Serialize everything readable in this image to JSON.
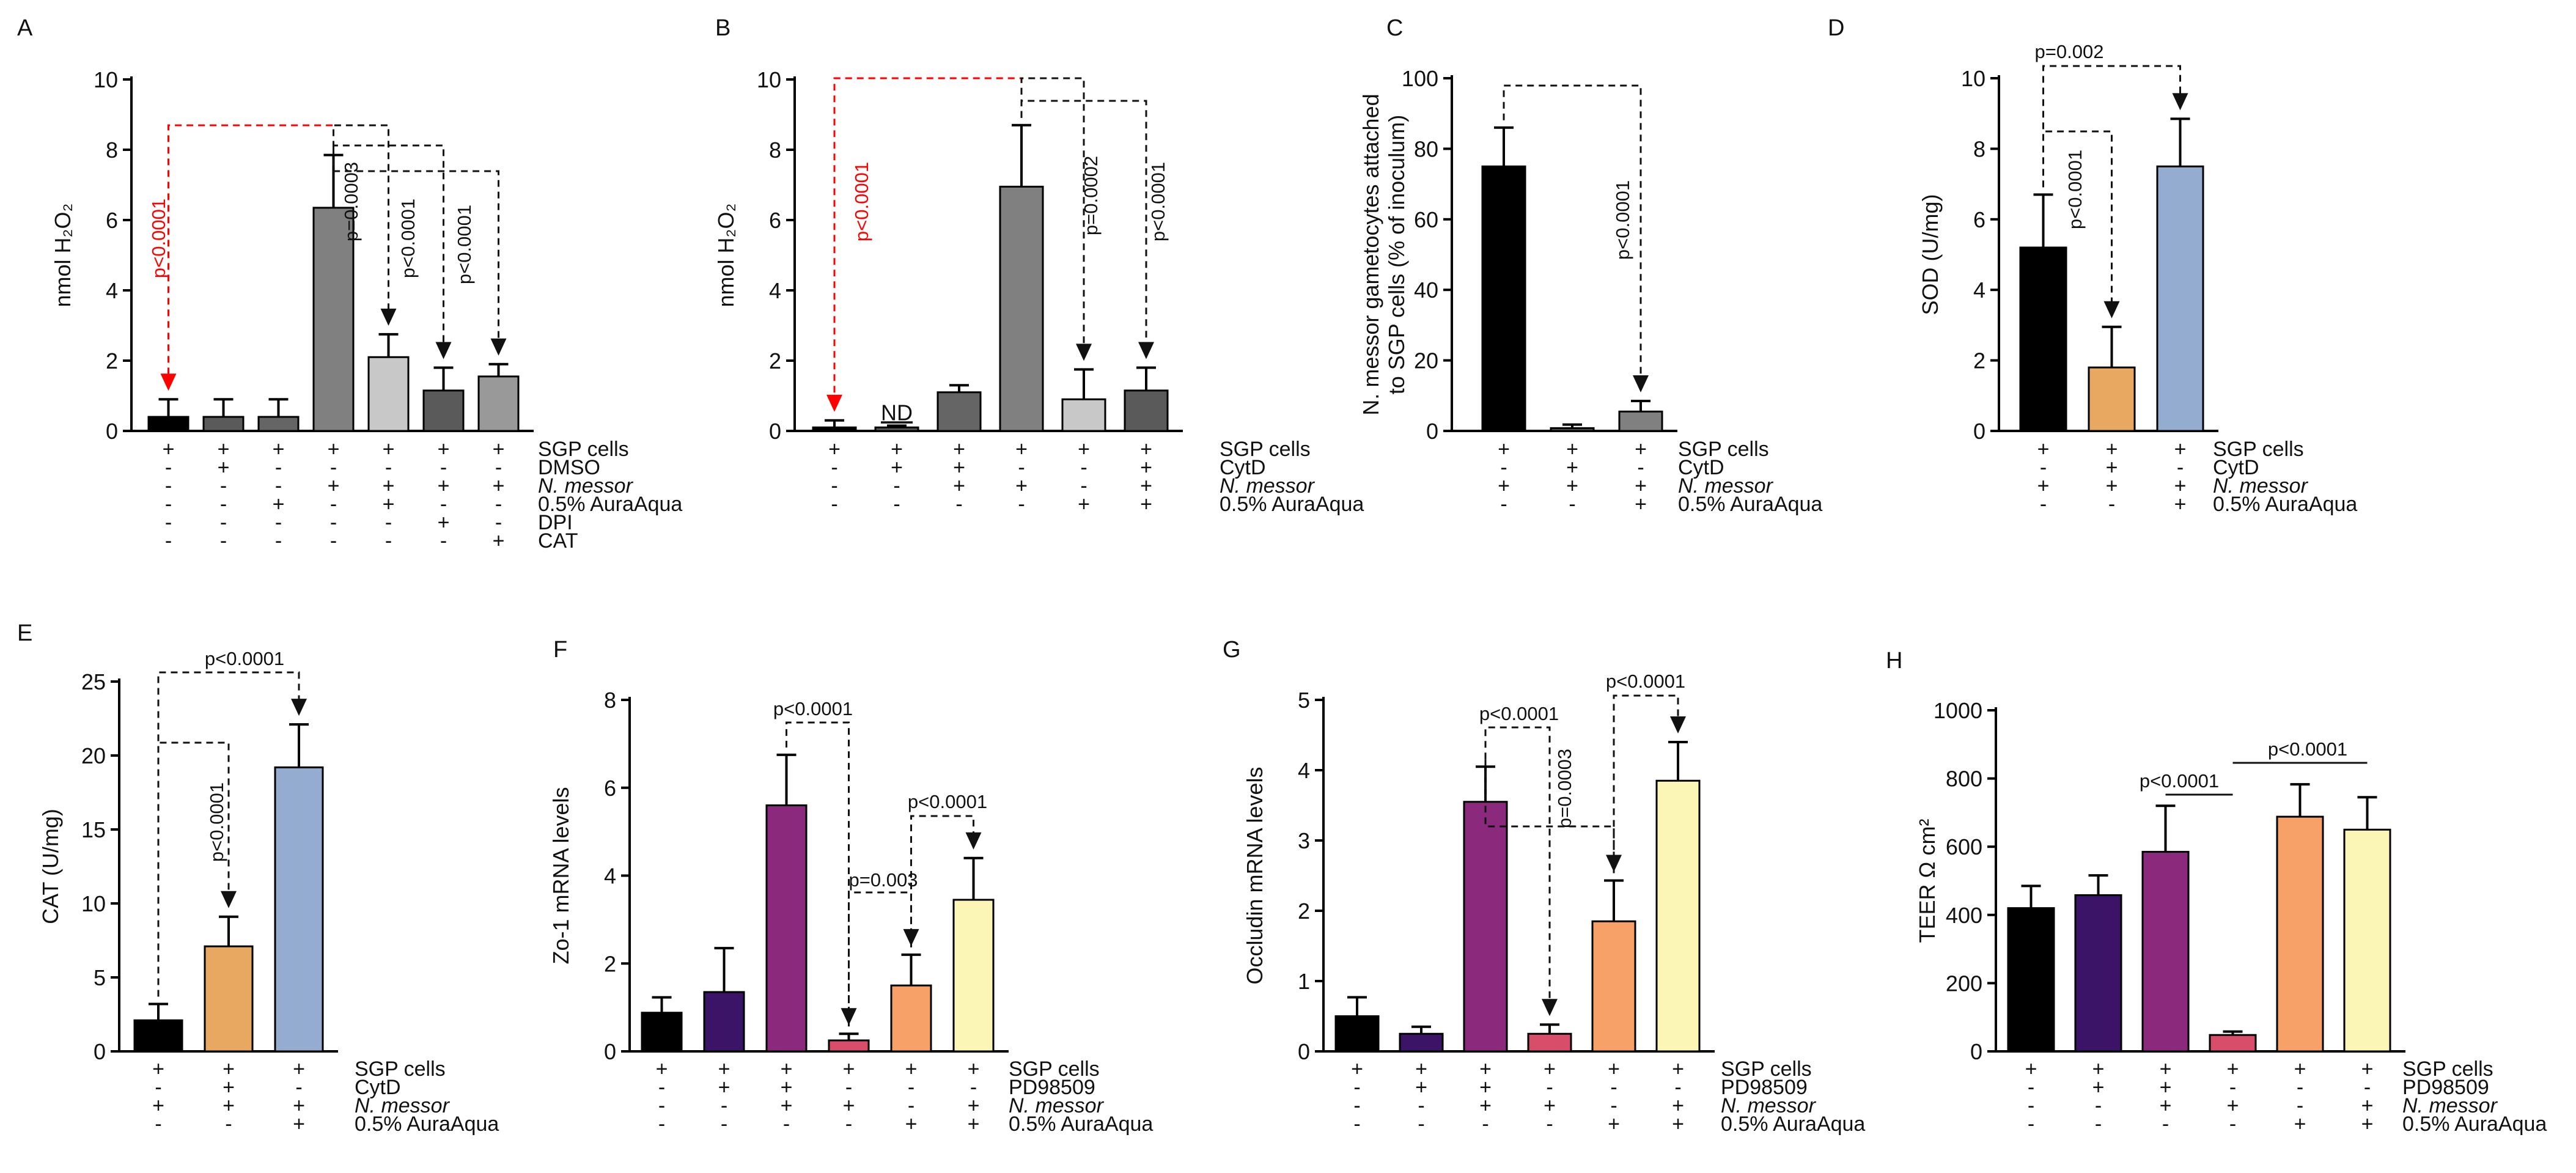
{
  "figure": {
    "colors": {
      "black": "#000000",
      "dark_gray": "#5a5a5a",
      "mid_gray": "#808080",
      "light_gray": "#c8c8c8",
      "gray2": "#656565",
      "gray3": "#999999",
      "orange_tan": "#e8a862",
      "steel_blue": "#93acd0",
      "indigo": "#3b1468",
      "purple": "#8b2a7d",
      "rose": "#d84d6a",
      "salmon": "#f7a068",
      "cream": "#fcf6b6",
      "red": "#ff0000"
    }
  },
  "chart_data": [
    {
      "panel": "A",
      "type": "bar",
      "ylabel": "nmol H₂O₂",
      "ylim": [
        0,
        10
      ],
      "yticks": [
        "0",
        "2",
        "4",
        "6",
        "8",
        "10"
      ],
      "values": [
        0.4,
        0.4,
        0.4,
        6.35,
        2.1,
        1.15,
        1.55
      ],
      "errors": [
        0.5,
        0.5,
        0.5,
        1.5,
        0.65,
        0.65,
        0.35
      ],
      "bar_colors": [
        "#000000",
        "#5a5a5a",
        "#656565",
        "#808080",
        "#c8c8c8",
        "#5a5a5a",
        "#999999"
      ],
      "conditions": [
        {
          "label": "SGP cells",
          "marks": [
            "+",
            "+",
            "+",
            "+",
            "+",
            "+",
            "+"
          ]
        },
        {
          "label": "DMSO",
          "marks": [
            "-",
            "+",
            "-",
            "-",
            "-",
            "-",
            "-"
          ]
        },
        {
          "label": "N. messor",
          "italic": true,
          "marks": [
            "-",
            "-",
            "-",
            "+",
            "+",
            "+",
            "+"
          ]
        },
        {
          "label": "0.5% AuraAqua",
          "marks": [
            "-",
            "-",
            "+",
            "-",
            "+",
            "-",
            "-"
          ]
        },
        {
          "label": "DPI",
          "marks": [
            "-",
            "-",
            "-",
            "-",
            "-",
            "+",
            "-"
          ]
        },
        {
          "label": "CAT",
          "marks": [
            "-",
            "-",
            "-",
            "-",
            "-",
            "-",
            "+"
          ]
        }
      ],
      "annotations": [
        {
          "text": "p<0.0001",
          "from": 3,
          "to": 0,
          "color": "red"
        },
        {
          "text": "p=0.0003",
          "from": 3,
          "to": 4
        },
        {
          "text": "p<0.0001",
          "from": 3,
          "to": 5
        },
        {
          "text": "p<0.0001",
          "from": 3,
          "to": 6
        }
      ],
      "nd": []
    },
    {
      "panel": "B",
      "type": "bar",
      "ylabel": "nmol H₂O₂",
      "ylim": [
        0,
        10
      ],
      "yticks": [
        "0",
        "2",
        "4",
        "6",
        "8",
        "10"
      ],
      "values": [
        0.1,
        0.1,
        1.1,
        6.95,
        0.9,
        1.15
      ],
      "errors": [
        0.2,
        0.05,
        0.2,
        1.75,
        0.85,
        0.65
      ],
      "bar_colors": [
        "#000000",
        "#5a5a5a",
        "#656565",
        "#808080",
        "#c8c8c8",
        "#5a5a5a"
      ],
      "conditions": [
        {
          "label": "SGP cells",
          "marks": [
            "+",
            "+",
            "+",
            "+",
            "+",
            "+"
          ]
        },
        {
          "label": "CytD",
          "marks": [
            "-",
            "+",
            "+",
            "-",
            "-",
            "+"
          ]
        },
        {
          "label": "N. messor",
          "italic": true,
          "marks": [
            "-",
            "-",
            "+",
            "+",
            "-",
            "+"
          ]
        },
        {
          "label": "0.5% AuraAqua",
          "marks": [
            "-",
            "-",
            "-",
            "-",
            "+",
            "+"
          ]
        }
      ],
      "annotations": [
        {
          "text": "p<0.0001",
          "from": 3,
          "to": 0,
          "color": "red"
        },
        {
          "text": "p=0.0002",
          "from": 3,
          "to": 4
        },
        {
          "text": "p<0.0001",
          "from": 3,
          "to": 5
        }
      ],
      "nd": [
        {
          "text": "ND",
          "bar": 1
        }
      ]
    },
    {
      "panel": "C",
      "type": "bar",
      "ylabel": "N. messor gametocytes attached",
      "ylabel2": "to SGP cells (% of inoculum)",
      "ylim": [
        0,
        100
      ],
      "yticks": [
        "0",
        "20",
        "40",
        "60",
        "80",
        "100"
      ],
      "values": [
        75,
        0.8,
        5.5
      ],
      "errors": [
        11,
        1,
        3
      ],
      "bar_colors": [
        "#000000",
        "#5a5a5a",
        "#808080"
      ],
      "conditions": [
        {
          "label": "SGP cells",
          "marks": [
            "+",
            "+",
            "+"
          ]
        },
        {
          "label": "CytD",
          "marks": [
            "-",
            "+",
            "-"
          ]
        },
        {
          "label": "N. messor",
          "italic": true,
          "marks": [
            "+",
            "+",
            "+"
          ]
        },
        {
          "label": "0.5% AuraAqua",
          "marks": [
            "-",
            "-",
            "+"
          ]
        }
      ],
      "annotations": [
        {
          "text": "p<0.0001",
          "from": 0,
          "to": 2
        }
      ],
      "nd": []
    },
    {
      "panel": "D",
      "type": "bar",
      "ylabel": "SOD (U/mg)",
      "ylim": [
        0,
        10
      ],
      "yticks": [
        "0",
        "2",
        "4",
        "6",
        "8",
        "10"
      ],
      "values": [
        5.2,
        1.8,
        7.5
      ],
      "errors": [
        1.5,
        1.15,
        1.35
      ],
      "bar_colors": [
        "#000000",
        "#e8a862",
        "#93acd0"
      ],
      "conditions": [
        {
          "label": "SGP cells",
          "marks": [
            "+",
            "+",
            "+"
          ]
        },
        {
          "label": "CytD",
          "marks": [
            "-",
            "+",
            "-"
          ]
        },
        {
          "label": "N. messor",
          "italic": true,
          "marks": [
            "+",
            "+",
            "+"
          ]
        },
        {
          "label": "0.5% AuraAqua",
          "marks": [
            "-",
            "-",
            "+"
          ]
        }
      ],
      "annotations": [
        {
          "text": "p=0.002",
          "from": 0,
          "to": 2
        },
        {
          "text": "p<0.0001",
          "from": 0,
          "to": 1
        }
      ],
      "nd": []
    },
    {
      "panel": "E",
      "type": "bar",
      "ylabel": "CAT (U/mg)",
      "ylim": [
        0,
        25
      ],
      "yticks": [
        "0",
        "5",
        "10",
        "15",
        "20",
        "25"
      ],
      "values": [
        2.1,
        7.1,
        19.2
      ],
      "errors": [
        1.1,
        2.0,
        2.9
      ],
      "bar_colors": [
        "#000000",
        "#e8a862",
        "#93acd0"
      ],
      "conditions": [
        {
          "label": "SGP cells",
          "marks": [
            "+",
            "+",
            "+"
          ]
        },
        {
          "label": "CytD",
          "marks": [
            "-",
            "+",
            "-"
          ]
        },
        {
          "label": "N. messor",
          "italic": true,
          "marks": [
            "+",
            "+",
            "+"
          ]
        },
        {
          "label": "0.5% AuraAqua",
          "marks": [
            "-",
            "-",
            "+"
          ]
        }
      ],
      "annotations": [
        {
          "text": "p<0.0001",
          "from": 0,
          "to": 2
        },
        {
          "text": "p<0.0001",
          "from": 0,
          "to": 1
        }
      ],
      "nd": []
    },
    {
      "panel": "F",
      "type": "bar",
      "ylabel": "Zo-1 mRNA levels",
      "ylim": [
        0,
        8
      ],
      "yticks": [
        "0",
        "2",
        "4",
        "6",
        "8"
      ],
      "values": [
        0.88,
        1.35,
        5.6,
        0.25,
        1.5,
        3.45
      ],
      "errors": [
        0.35,
        1.0,
        1.15,
        0.15,
        0.7,
        0.95
      ],
      "bar_colors": [
        "#000000",
        "#3b1468",
        "#8b2a7d",
        "#d84d6a",
        "#f7a068",
        "#fcf6b6"
      ],
      "conditions": [
        {
          "label": "SGP cells",
          "marks": [
            "+",
            "+",
            "+",
            "+",
            "+",
            "+"
          ]
        },
        {
          "label": "PD98509",
          "marks": [
            "-",
            "+",
            "+",
            "-",
            "-",
            "-"
          ]
        },
        {
          "label": "N. messor",
          "italic": true,
          "marks": [
            "-",
            "-",
            "+",
            "+",
            "-",
            "+"
          ]
        },
        {
          "label": "0.5% AuraAqua",
          "marks": [
            "-",
            "-",
            "-",
            "-",
            "+",
            "+"
          ]
        }
      ],
      "annotations": [
        {
          "text": "p<0.0001",
          "from": 2,
          "to": 3
        },
        {
          "text": "p=0.003",
          "from": 3,
          "to": 4
        },
        {
          "text": "p<0.0001",
          "from": 4,
          "to": 5
        }
      ],
      "nd": []
    },
    {
      "panel": "G",
      "type": "bar",
      "ylabel": "Occludin mRNA levels",
      "ylim": [
        0,
        5
      ],
      "yticks": [
        "0",
        "1",
        "2",
        "3",
        "4",
        "5"
      ],
      "values": [
        0.5,
        0.25,
        3.55,
        0.25,
        1.85,
        3.85
      ],
      "errors": [
        0.27,
        0.1,
        0.5,
        0.13,
        0.58,
        0.55
      ],
      "bar_colors": [
        "#000000",
        "#3b1468",
        "#8b2a7d",
        "#d84d6a",
        "#f7a068",
        "#fcf6b6"
      ],
      "conditions": [
        {
          "label": "SGP cells",
          "marks": [
            "+",
            "+",
            "+",
            "+",
            "+",
            "+"
          ]
        },
        {
          "label": "PD98509",
          "marks": [
            "-",
            "+",
            "+",
            "-",
            "-",
            "-"
          ]
        },
        {
          "label": "N. messor",
          "italic": true,
          "marks": [
            "-",
            "-",
            "+",
            "+",
            "-",
            "+"
          ]
        },
        {
          "label": "0.5% AuraAqua",
          "marks": [
            "-",
            "-",
            "-",
            "-",
            "+",
            "+"
          ]
        }
      ],
      "annotations": [
        {
          "text": "p<0.0001",
          "from": 2,
          "to": 3
        },
        {
          "text": "p=0.0003",
          "from": 2,
          "to": 4
        },
        {
          "text": "p<0.0001",
          "from": 4,
          "to": 5
        }
      ],
      "nd": []
    },
    {
      "panel": "H",
      "type": "bar",
      "ylabel": "TEER Ω cm²",
      "ylim": [
        0,
        1000
      ],
      "yticks": [
        "0",
        "200",
        "400",
        "600",
        "800",
        "1000"
      ],
      "values": [
        420,
        458,
        585,
        48,
        688,
        650
      ],
      "errors": [
        65,
        58,
        135,
        10,
        95,
        95
      ],
      "bar_colors": [
        "#000000",
        "#3b1468",
        "#8b2a7d",
        "#d84d6a",
        "#f7a068",
        "#fcf6b6"
      ],
      "conditions": [
        {
          "label": "SGP cells",
          "marks": [
            "+",
            "+",
            "+",
            "+",
            "+",
            "+"
          ]
        },
        {
          "label": "PD98509",
          "marks": [
            "-",
            "+",
            "+",
            "-",
            "-",
            "-"
          ]
        },
        {
          "label": "N. messor",
          "italic": true,
          "marks": [
            "-",
            "-",
            "+",
            "+",
            "-",
            "+"
          ]
        },
        {
          "label": "0.5% AuraAqua",
          "marks": [
            "-",
            "-",
            "-",
            "-",
            "+",
            "+"
          ]
        }
      ],
      "annotations": [
        {
          "text": "p<0.0001",
          "from": 2,
          "to": 3
        },
        {
          "text": "p<0.0001",
          "from": 3,
          "to": 5
        }
      ],
      "nd": []
    }
  ]
}
